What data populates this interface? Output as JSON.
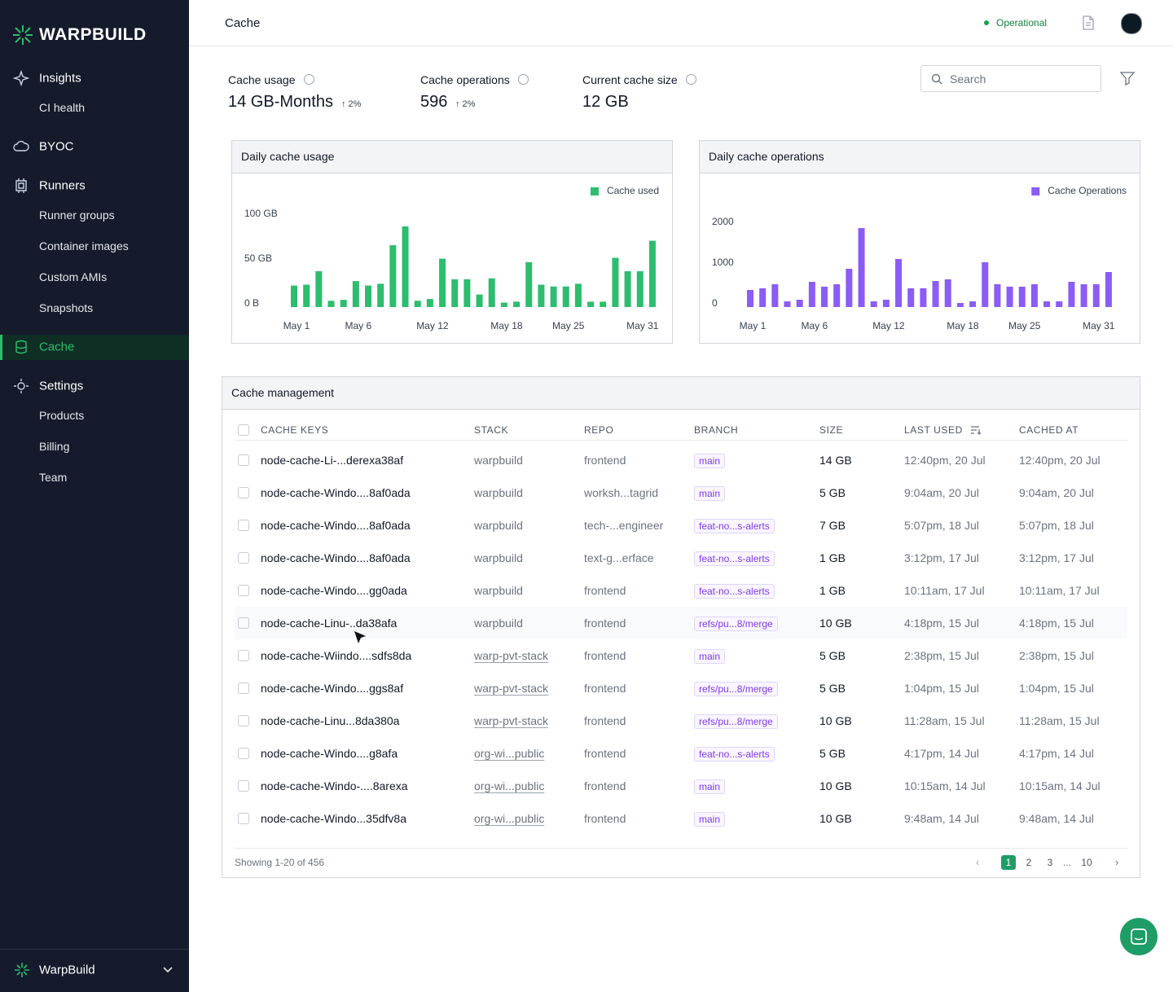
{
  "sidebar": {
    "brand": "WARPBUILD",
    "nav": [
      "Insights",
      "CI health",
      "BYOC",
      "Runners",
      "Runner groups",
      "Container images",
      "Custom AMIs",
      "Snapshots",
      "Cache",
      "Settings",
      "Products",
      "Billing",
      "Team"
    ],
    "workspace": "WarpBuild"
  },
  "header": {
    "title": "Cache",
    "status": "Operational"
  },
  "stats": [
    {
      "label": "Cache usage",
      "value": "14 GB-Months",
      "change": "2%"
    },
    {
      "label": "Cache operations",
      "value": "596",
      "change": "2%"
    },
    {
      "label": "Current cache size",
      "value": "12 GB"
    }
  ],
  "search": {
    "placeholder": "Search"
  },
  "chart_data": [
    {
      "type": "bar",
      "title": "Daily cache usage",
      "categories": [
        "May 1",
        null,
        null,
        null,
        null,
        "May 6",
        null,
        null,
        null,
        null,
        null,
        "May 12",
        null,
        null,
        null,
        null,
        null,
        "May 18",
        null,
        null,
        null,
        null,
        "May 25",
        null,
        null,
        null,
        null,
        null,
        "May 31",
        null
      ],
      "series": [
        {
          "name": "Cache used",
          "color": "#2dbd6e",
          "values": [
            24,
            25,
            40,
            7,
            8,
            29,
            24,
            26,
            69,
            90,
            7,
            9,
            54,
            31,
            31,
            14,
            32,
            5,
            6,
            50,
            25,
            23,
            23,
            26,
            6,
            6,
            55,
            40,
            40,
            74
          ]
        }
      ],
      "ylim": [
        0,
        100
      ],
      "yticks": [
        {
          "value": 0,
          "label": "0 B"
        },
        {
          "value": 50,
          "label": "50 GB"
        },
        {
          "value": 100,
          "label": "100 GB"
        }
      ],
      "legend": "top-right"
    },
    {
      "type": "bar",
      "title": "Daily cache operations",
      "categories": [
        "May 1",
        null,
        null,
        null,
        null,
        "May 6",
        null,
        null,
        null,
        null,
        null,
        "May 12",
        null,
        null,
        null,
        null,
        null,
        "May 18",
        null,
        null,
        null,
        null,
        "May 25",
        null,
        null,
        null,
        null,
        null,
        "May 31",
        null
      ],
      "series": [
        {
          "name": "Cache Operations",
          "color": "#8b5cf6",
          "values": [
            420,
            460,
            560,
            140,
            180,
            620,
            500,
            560,
            940,
            1940,
            140,
            180,
            1180,
            460,
            460,
            640,
            680,
            100,
            140,
            1100,
            560,
            500,
            500,
            560,
            140,
            140,
            620,
            560,
            560,
            860
          ]
        }
      ],
      "ylim": [
        0,
        2000
      ],
      "yticks": [
        0,
        1000,
        2000
      ],
      "legend": "top-right"
    }
  ],
  "table": {
    "title": "Cache management",
    "columns": [
      "CACHE KEYS",
      "STACK",
      "REPO",
      "BRANCH",
      "SIZE",
      "LAST USED",
      "CACHED AT"
    ],
    "rows": [
      [
        "node-cache-Li-...derexa38af",
        "warpbuild",
        "frontend",
        "main",
        "14 GB",
        "12:40pm, 20 Jul",
        "12:40pm, 20 Jul"
      ],
      [
        "node-cache-Windo....8af0ada",
        "warpbuild",
        "worksh...tagrid",
        "main",
        "5 GB",
        "9:04am, 20 Jul",
        "9:04am, 20 Jul"
      ],
      [
        "node-cache-Windo....8af0ada",
        "warpbuild",
        "tech-...engineer",
        "feat-no...s-alerts",
        "7 GB",
        "5:07pm, 18 Jul",
        "5:07pm, 18 Jul"
      ],
      [
        "node-cache-Windo....8af0ada",
        "warpbuild",
        "text-g...erface",
        "feat-no...s-alerts",
        "1 GB",
        "3:12pm, 17 Jul",
        "3:12pm, 17 Jul"
      ],
      [
        "node-cache-Windo....gg0ada",
        "warpbuild",
        "frontend",
        "feat-no...s-alerts",
        "1 GB",
        "10:11am, 17 Jul",
        "10:11am, 17 Jul"
      ],
      [
        "node-cache-Linu-..da38afa",
        "warpbuild",
        "frontend",
        "refs/pu...8/merge",
        "10 GB",
        "4:18pm, 15 Jul",
        "4:18pm, 15 Jul"
      ],
      [
        "node-cache-Wiindo....sdfs8da",
        "warp-pvt-stack",
        "frontend",
        "main",
        "5 GB",
        "2:38pm, 15 Jul",
        "2:38pm, 15 Jul"
      ],
      [
        "node-cache-Windo....ggs8af",
        "warp-pvt-stack",
        "frontend",
        "refs/pu...8/merge",
        "5 GB",
        "1:04pm, 15 Jul",
        "1:04pm, 15 Jul"
      ],
      [
        "node-cache-Linu...8da380a",
        "warp-pvt-stack",
        "frontend",
        "refs/pu...8/merge",
        "10 GB",
        "11:28am, 15 Jul",
        "11:28am, 15 Jul"
      ],
      [
        "node-cache-Windo....g8afa",
        "org-wi...public",
        "frontend",
        "feat-no...s-alerts",
        "5 GB",
        "4:17pm, 14 Jul",
        "4:17pm, 14 Jul"
      ],
      [
        "node-cache-Windo-....8arexa",
        "org-wi...public",
        "frontend",
        "main",
        "10 GB",
        "10:15am, 14 Jul",
        "10:15am, 14 Jul"
      ],
      [
        "node-cache-Windo...35dfv8a",
        "org-wi...public",
        "frontend",
        "main",
        "10 GB",
        "9:48am, 14 Jul",
        "9:48am, 14 Jul"
      ]
    ]
  },
  "pagination": {
    "summary": "Showing 1-20 of 456",
    "pages": [
      "1",
      "2",
      "3",
      "...",
      "10"
    ]
  }
}
